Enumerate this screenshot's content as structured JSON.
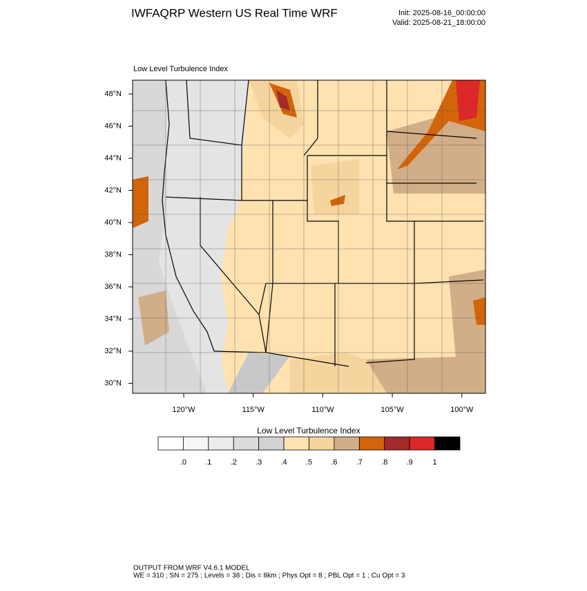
{
  "header": {
    "title": "IWFAQRP Western US Real Time WRF",
    "init": "Init: 2025-08-16_00:00:00",
    "valid": "Valid: 2025-08-21_18:00:00"
  },
  "map": {
    "subtitle": "Low Level Turbulence Index",
    "lat_labels": [
      "48°N",
      "46°N",
      "44°N",
      "42°N",
      "40°N",
      "38°N",
      "36°N",
      "34°N",
      "32°N",
      "30°N"
    ],
    "lon_labels": [
      "120°W",
      "115°W",
      "110°W",
      "105°W",
      "100°W"
    ]
  },
  "colorbar": {
    "title": "Low Level Turbulence Index",
    "colors": [
      "#ffffff",
      "#f6f6f6",
      "#ececec",
      "#dcdcdc",
      "#d2d2d2",
      "#ffe2b0",
      "#f6d49e",
      "#d2ae88",
      "#d2640a",
      "#a52a2a",
      "#dc2828",
      "#000000"
    ],
    "labels": [
      ".0",
      ".1",
      ".2",
      ".3",
      ".4",
      ".5",
      ".6",
      ".7",
      ".8",
      ".9",
      "1"
    ]
  },
  "footer": {
    "line1": "OUTPUT FROM WRF V4.6.1 MODEL",
    "line2": "WE = 310 ; SN = 275 ; Levels = 38 ; Dis = 8km ; Phys Opt = 8 ; PBL Opt = 1 ; Cu Opt = 3"
  }
}
